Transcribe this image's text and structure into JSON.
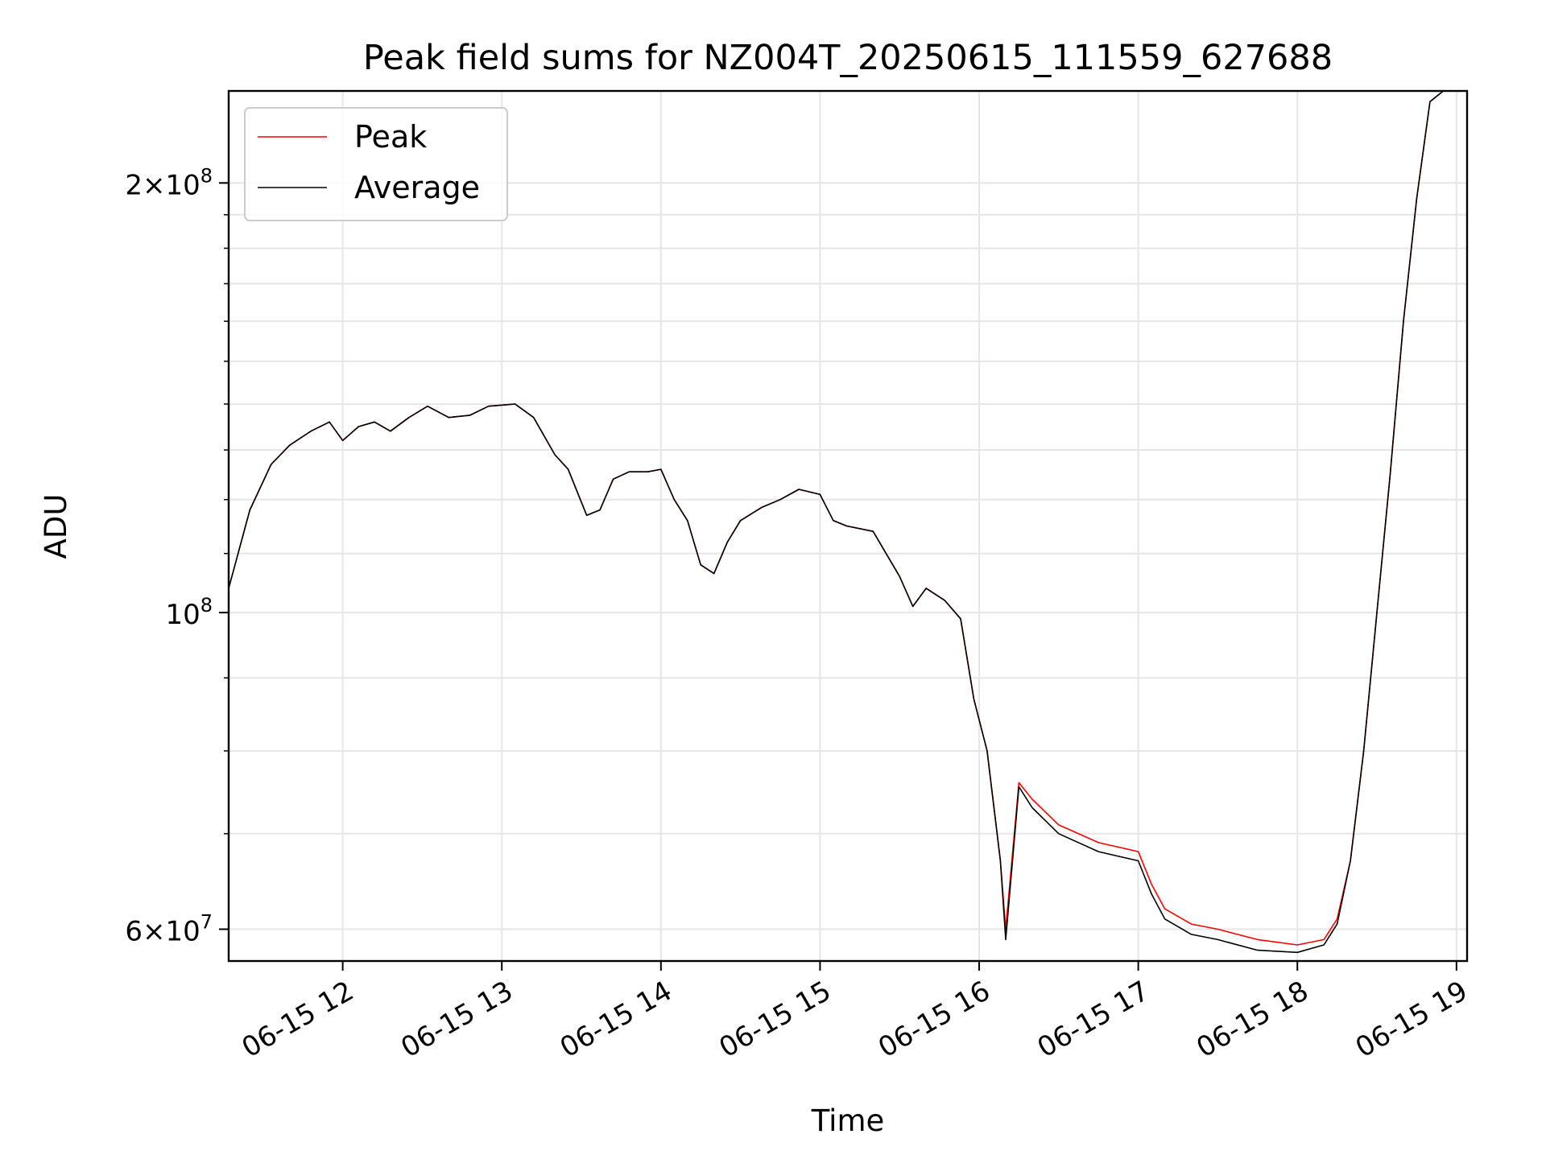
{
  "chart_data": {
    "type": "line",
    "title": "Peak field sums for NZ004T_20250615_111559_627688",
    "xlabel": "Time",
    "ylabel": "ADU",
    "xscale": "time",
    "yscale": "log",
    "grid": true,
    "legend_position": "top-left",
    "xlim": [
      "2025-06-15 11:17",
      "2025-06-15 19:04"
    ],
    "ylim": [
      57000000,
      232000000
    ],
    "x_ticks": [
      "06-15 12",
      "06-15 13",
      "06-15 14",
      "06-15 15",
      "06-15 16",
      "06-15 17",
      "06-15 18",
      "06-15 19"
    ],
    "y_ticks": [
      {
        "value": 60000000,
        "base": "6×10",
        "exp": "7"
      },
      {
        "value": 100000000,
        "base": "10",
        "exp": "8"
      },
      {
        "value": 200000000,
        "base": "2×10",
        "exp": "8"
      }
    ],
    "series": [
      {
        "name": "Peak",
        "color": "#ff0000",
        "x": [
          "11:17",
          "11:25",
          "11:33",
          "11:40",
          "11:48",
          "11:55",
          "12:00",
          "12:06",
          "12:12",
          "12:18",
          "12:25",
          "12:32",
          "12:40",
          "12:48",
          "12:55",
          "13:05",
          "13:12",
          "13:20",
          "13:25",
          "13:32",
          "13:37",
          "13:42",
          "13:48",
          "13:55",
          "14:00",
          "14:05",
          "14:10",
          "14:15",
          "14:20",
          "14:25",
          "14:30",
          "14:38",
          "14:45",
          "14:52",
          "15:00",
          "15:05",
          "15:10",
          "15:20",
          "15:30",
          "15:35",
          "15:40",
          "15:47",
          "15:53",
          "15:58",
          "16:03",
          "16:08",
          "16:10",
          "16:15",
          "16:20",
          "16:30",
          "16:45",
          "17:00",
          "17:05",
          "17:10",
          "17:20",
          "17:30",
          "17:45",
          "18:00",
          "18:10",
          "18:15",
          "18:20",
          "18:25",
          "18:30",
          "18:35",
          "18:40",
          "18:45",
          "18:50",
          "18:55"
        ],
        "y": [
          104000000,
          118000000,
          127000000,
          131000000,
          134000000,
          136000000,
          132000000,
          135000000,
          136000000,
          134000000,
          137000000,
          139500000,
          137000000,
          137500000,
          139500000,
          140000000,
          137000000,
          129000000,
          126000000,
          117000000,
          118000000,
          124000000,
          125500000,
          125500000,
          126000000,
          120000000,
          116000000,
          108000000,
          106500000,
          112000000,
          116000000,
          118500000,
          120000000,
          122000000,
          121000000,
          116000000,
          115000000,
          114000000,
          106000000,
          101000000,
          104000000,
          102000000,
          99000000,
          87000000,
          80000000,
          67000000,
          60000000,
          76000000,
          74000000,
          71000000,
          69000000,
          68000000,
          64500000,
          62000000,
          60500000,
          60000000,
          59000000,
          58500000,
          59000000,
          61000000,
          67000000,
          80000000,
          100000000,
          125000000,
          160000000,
          195000000,
          228000000,
          232000000
        ]
      },
      {
        "name": "Average",
        "color": "#000000",
        "x": [
          "11:17",
          "11:25",
          "11:33",
          "11:40",
          "11:48",
          "11:55",
          "12:00",
          "12:06",
          "12:12",
          "12:18",
          "12:25",
          "12:32",
          "12:40",
          "12:48",
          "12:55",
          "13:05",
          "13:12",
          "13:20",
          "13:25",
          "13:32",
          "13:37",
          "13:42",
          "13:48",
          "13:55",
          "14:00",
          "14:05",
          "14:10",
          "14:15",
          "14:20",
          "14:25",
          "14:30",
          "14:38",
          "14:45",
          "14:52",
          "15:00",
          "15:05",
          "15:10",
          "15:20",
          "15:30",
          "15:35",
          "15:40",
          "15:47",
          "15:53",
          "15:58",
          "16:03",
          "16:08",
          "16:10",
          "16:15",
          "16:20",
          "16:30",
          "16:45",
          "17:00",
          "17:05",
          "17:10",
          "17:20",
          "17:30",
          "17:45",
          "18:00",
          "18:10",
          "18:15",
          "18:20",
          "18:25",
          "18:30",
          "18:35",
          "18:40",
          "18:45",
          "18:50",
          "18:55"
        ],
        "y": [
          104000000,
          118000000,
          127000000,
          131000000,
          134000000,
          136000000,
          132000000,
          135000000,
          136000000,
          134000000,
          137000000,
          139500000,
          137000000,
          137500000,
          139500000,
          140000000,
          137000000,
          129000000,
          126000000,
          117000000,
          118000000,
          124000000,
          125500000,
          125500000,
          126000000,
          120000000,
          116000000,
          108000000,
          106500000,
          112000000,
          116000000,
          118500000,
          120000000,
          122000000,
          121000000,
          116000000,
          115000000,
          114000000,
          106000000,
          101000000,
          104000000,
          102000000,
          99000000,
          87000000,
          80000000,
          67000000,
          59000000,
          75500000,
          73000000,
          70000000,
          68000000,
          67000000,
          63500000,
          61000000,
          59500000,
          59000000,
          58000000,
          57800000,
          58500000,
          60500000,
          67000000,
          80000000,
          100000000,
          125000000,
          160000000,
          195000000,
          228000000,
          232000000
        ]
      }
    ]
  }
}
